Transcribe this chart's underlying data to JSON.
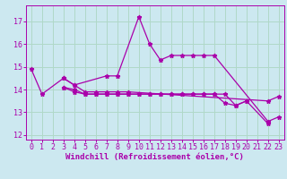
{
  "background_color": "#cce8f0",
  "grid_color": "#b0d8c8",
  "line_color": "#aa00aa",
  "xlabel": "Windchill (Refroidissement éolien,°C)",
  "xlabel_fontsize": 6.5,
  "tick_fontsize": 6.0,
  "ylim": [
    11.8,
    17.7
  ],
  "xlim": [
    -0.5,
    23.5
  ],
  "yticks": [
    12,
    13,
    14,
    15,
    16,
    17
  ],
  "xticks": [
    0,
    1,
    2,
    3,
    4,
    5,
    6,
    7,
    8,
    9,
    10,
    11,
    12,
    13,
    14,
    15,
    16,
    17,
    18,
    19,
    20,
    21,
    22,
    23
  ],
  "series": [
    {
      "x": [
        0,
        1,
        3,
        4,
        7,
        8,
        10,
        11,
        12,
        13,
        14,
        15,
        16,
        17,
        22,
        23
      ],
      "y": [
        14.9,
        13.8,
        14.5,
        14.2,
        14.6,
        14.6,
        17.2,
        16.0,
        15.3,
        15.5,
        15.5,
        15.5,
        15.5,
        15.5,
        12.6,
        12.8
      ]
    },
    {
      "x": [
        3,
        4,
        5,
        6,
        7,
        8,
        9,
        22,
        23
      ],
      "y": [
        14.5,
        14.2,
        13.9,
        13.9,
        13.9,
        13.9,
        13.9,
        13.5,
        13.7
      ]
    },
    {
      "x": [
        3,
        4,
        5,
        6,
        7,
        8,
        9,
        10,
        11,
        12,
        13,
        14,
        15,
        16,
        17,
        18,
        19,
        20,
        22
      ],
      "y": [
        14.1,
        14.0,
        13.8,
        13.8,
        13.8,
        13.8,
        13.8,
        13.8,
        13.8,
        13.8,
        13.8,
        13.8,
        13.8,
        13.8,
        13.8,
        13.4,
        13.3,
        13.5,
        12.5
      ]
    },
    {
      "x": [
        3,
        4,
        5,
        6,
        7,
        8,
        9,
        10,
        11,
        12,
        13,
        14,
        15,
        16,
        17,
        18,
        19,
        20
      ],
      "y": [
        14.1,
        13.9,
        13.8,
        13.8,
        13.8,
        13.8,
        13.8,
        13.8,
        13.8,
        13.8,
        13.8,
        13.8,
        13.8,
        13.8,
        13.8,
        13.8,
        13.3,
        13.5
      ]
    }
  ]
}
